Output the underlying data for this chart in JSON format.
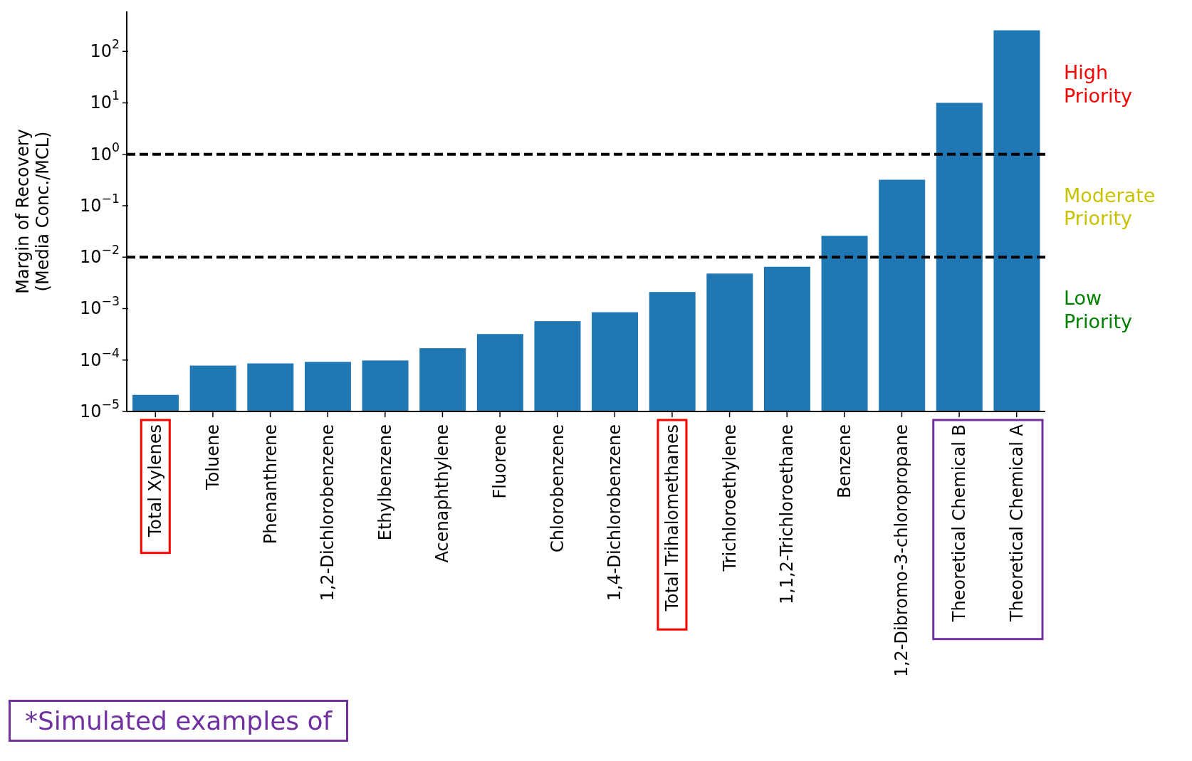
{
  "chart_data": {
    "type": "bar",
    "ylabel": "Margin of Recovery\n(Media Conc./MCL)",
    "categories": [
      "Total Xylenes",
      "Toluene",
      "Phenanthrene",
      "1,2-Dichlorobenzene",
      "Ethylbenzene",
      "Acenaphthylene",
      "Fluorene",
      "Chlorobenzene",
      "1,4-Dichlorobenzene",
      "Total Trihalomethanes",
      "Trichloroethylene",
      "1,1,2-Trichloroethane",
      "Benzene",
      "1,2-Dibromo-3-chloropropane",
      "Theoretical Chemical B",
      "Theoretical Chemical A"
    ],
    "values": [
      2.1e-05,
      7.8e-05,
      8.6e-05,
      9.2e-05,
      9.8e-05,
      0.00017,
      0.00032,
      0.00057,
      0.00085,
      0.0021,
      0.0048,
      0.0065,
      0.026,
      0.32,
      10,
      257
    ],
    "color": "#1f77b4",
    "log": true,
    "ylim": [
      1e-05,
      600
    ],
    "yticks": [
      {
        "value": 1e-05,
        "label": "10$^{−5}$"
      },
      {
        "value": 0.0001,
        "label": "10$^{−4}$"
      },
      {
        "value": 0.001,
        "label": "10$^{−3}$"
      },
      {
        "value": 0.01,
        "label": "10$^{−2}$"
      },
      {
        "value": 0.1,
        "label": "10$^{−1}$"
      },
      {
        "value": 1,
        "label": "10$^{0}$"
      },
      {
        "value": 10,
        "label": "10$^{1}$"
      },
      {
        "value": 100,
        "label": "10$^{2}$"
      }
    ],
    "ref_lines": [
      {
        "axis": "y",
        "value": 1,
        "color": "#000000",
        "line_style": "dashed"
      },
      {
        "axis": "y",
        "value": 0.01,
        "color": "#000000",
        "line_style": "dashed"
      }
    ],
    "annotations": [
      "High\nPriority",
      "Moderate\nPriority",
      "Low\nPriority",
      "*Simulated examples of"
    ]
  }
}
